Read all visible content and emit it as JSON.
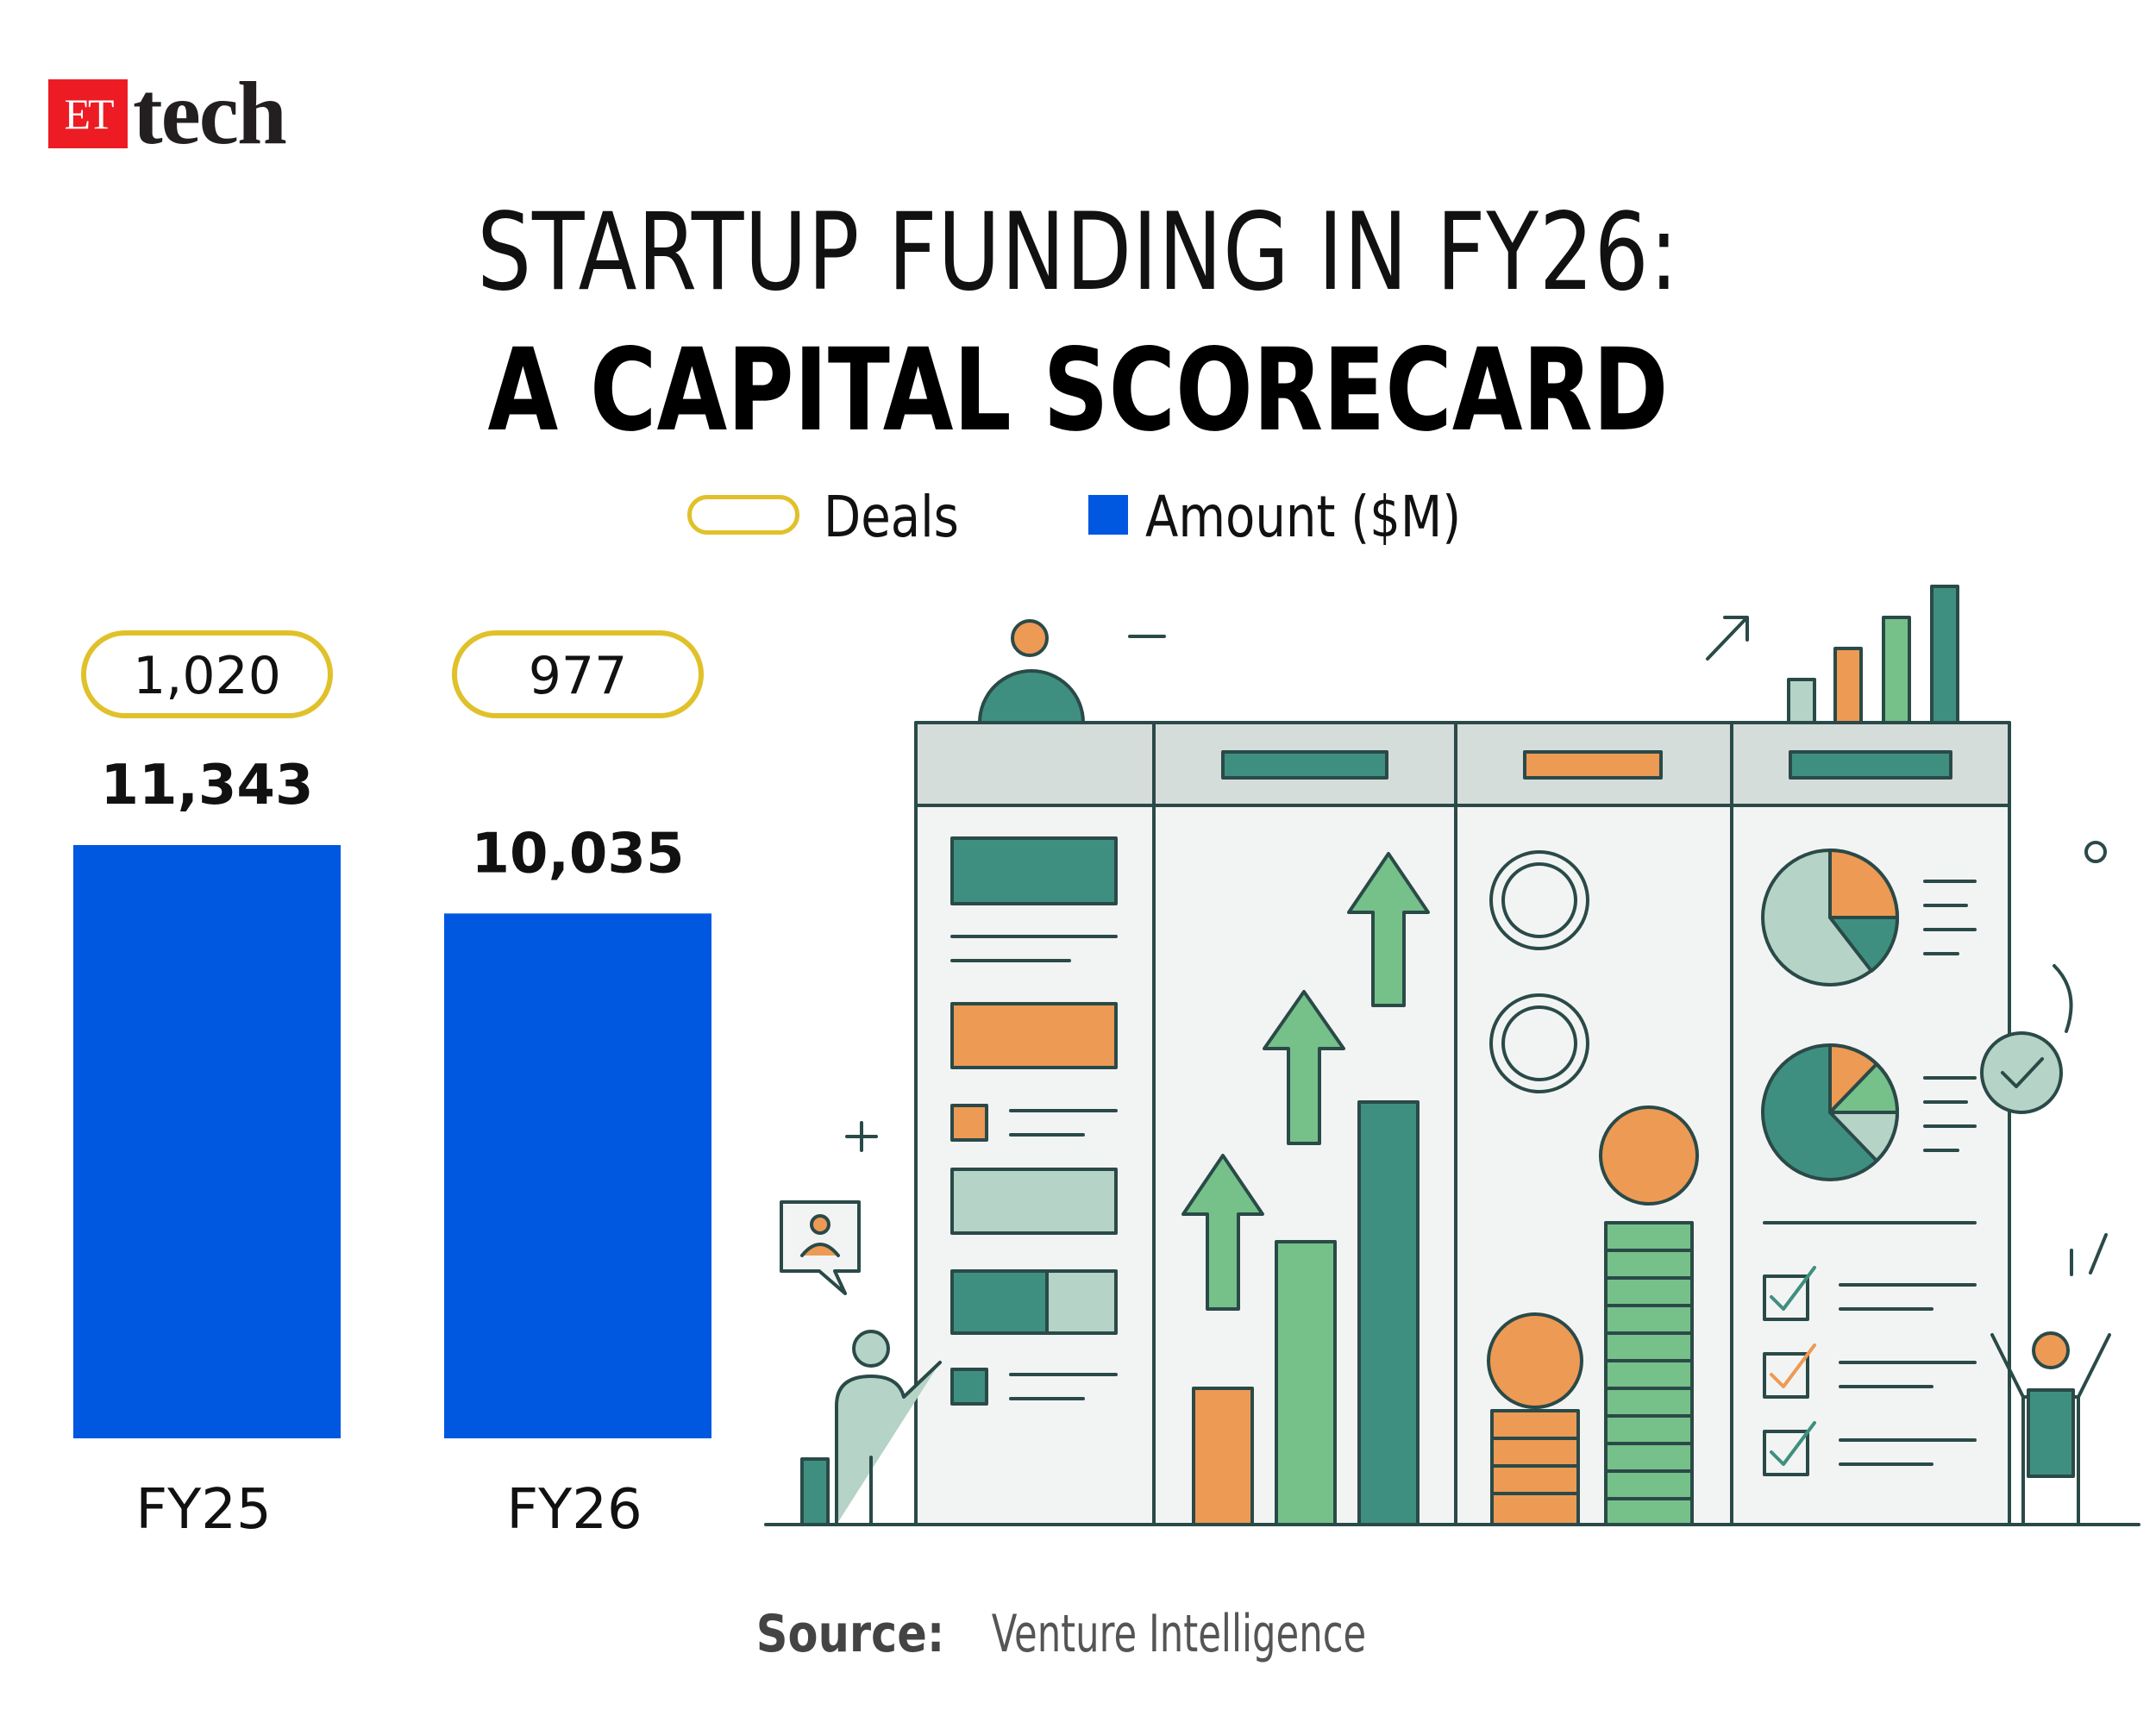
{
  "logo": {
    "et": "ET",
    "tech": "tech"
  },
  "title": {
    "line1": "STARTUP FUNDING IN FY26:",
    "line2": "A CAPITAL SCORECARD"
  },
  "legend": {
    "deals": "Deals",
    "amount": "Amount ($M)"
  },
  "colors": {
    "bar": "#0057e0",
    "deals_outline": "#e0c12a"
  },
  "chart_data": {
    "type": "bar",
    "categories": [
      "FY25",
      "FY26"
    ],
    "series": [
      {
        "name": "Amount ($M)",
        "values": [
          11343,
          10035
        ],
        "labels": [
          "11,343",
          "10,035"
        ]
      },
      {
        "name": "Deals",
        "values": [
          1020,
          977
        ],
        "labels": [
          "1,020",
          "977"
        ]
      }
    ],
    "title": "STARTUP FUNDING IN FY26: A CAPITAL SCORECARD",
    "legend": "top-center"
  },
  "source": {
    "label": "Source:",
    "value": "Venture Intelligence"
  }
}
